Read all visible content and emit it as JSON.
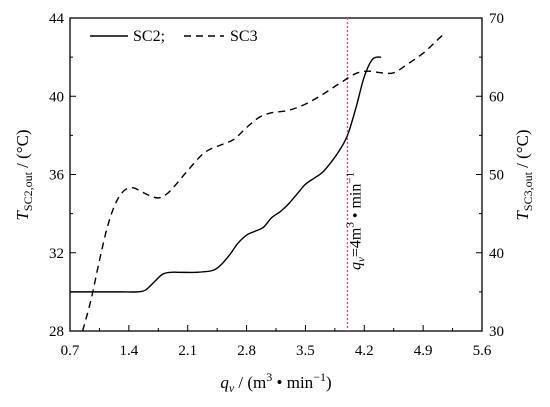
{
  "chart_data": {
    "type": "line",
    "x_axis": {
      "label_symbol": "q",
      "label_sub": "v",
      "label_unit_prefix": " / (m",
      "label_unit_sup": "3",
      "label_unit_mid": " • min",
      "label_unit_sup2": "−1",
      "label_unit_suffix": ")",
      "min": 0.7,
      "max": 5.6,
      "ticks": [
        0.7,
        1.4,
        2.1,
        2.8,
        3.5,
        4.2,
        4.9,
        5.6
      ],
      "tick_labels": [
        "0.7",
        "1.4",
        "2.1",
        "2.8",
        "3.5",
        "4.2",
        "4.9",
        "5.6"
      ]
    },
    "y_left": {
      "label_symbol": "T",
      "label_sub": "SC2,out",
      "label_unit": " / (°C)",
      "min": 28,
      "max": 44,
      "ticks": [
        28,
        32,
        36,
        40,
        44
      ],
      "tick_labels": [
        "28",
        "32",
        "36",
        "40",
        "44"
      ]
    },
    "y_right": {
      "label_symbol": "T",
      "label_sub": "SC3,out",
      "label_unit": " / (°C)",
      "min": 30,
      "max": 70,
      "ticks": [
        30,
        40,
        50,
        60,
        70
      ],
      "tick_labels": [
        "30",
        "40",
        "50",
        "60",
        "70"
      ]
    },
    "legend": {
      "placement": "top-left",
      "entries": [
        "SC2;",
        "SC3"
      ]
    },
    "series": [
      {
        "name": "SC2;",
        "axis": "left",
        "style": "solid",
        "points": [
          [
            0.7,
            30.0
          ],
          [
            1.0,
            30.0
          ],
          [
            1.3,
            30.0
          ],
          [
            1.5,
            30.0
          ],
          [
            1.6,
            30.1
          ],
          [
            1.7,
            30.5
          ],
          [
            1.8,
            30.9
          ],
          [
            1.9,
            31.0
          ],
          [
            2.0,
            31.0
          ],
          [
            2.2,
            31.0
          ],
          [
            2.4,
            31.1
          ],
          [
            2.5,
            31.4
          ],
          [
            2.6,
            31.9
          ],
          [
            2.7,
            32.5
          ],
          [
            2.8,
            32.9
          ],
          [
            2.9,
            33.1
          ],
          [
            3.0,
            33.3
          ],
          [
            3.1,
            33.8
          ],
          [
            3.2,
            34.1
          ],
          [
            3.3,
            34.5
          ],
          [
            3.4,
            35.0
          ],
          [
            3.5,
            35.5
          ],
          [
            3.6,
            35.8
          ],
          [
            3.7,
            36.1
          ],
          [
            3.8,
            36.6
          ],
          [
            3.9,
            37.2
          ],
          [
            4.0,
            38.0
          ],
          [
            4.1,
            39.4
          ],
          [
            4.2,
            41.0
          ],
          [
            4.3,
            41.9
          ],
          [
            4.4,
            42.0
          ]
        ]
      },
      {
        "name": "SC3",
        "axis": "right",
        "style": "dashed",
        "points": [
          [
            0.85,
            30.0
          ],
          [
            0.95,
            34.0
          ],
          [
            1.05,
            39.0
          ],
          [
            1.15,
            43.5
          ],
          [
            1.25,
            46.5
          ],
          [
            1.35,
            48.0
          ],
          [
            1.45,
            48.3
          ],
          [
            1.55,
            47.8
          ],
          [
            1.65,
            47.3
          ],
          [
            1.75,
            47.0
          ],
          [
            1.85,
            47.5
          ],
          [
            1.95,
            48.6
          ],
          [
            2.1,
            50.5
          ],
          [
            2.3,
            52.8
          ],
          [
            2.5,
            53.8
          ],
          [
            2.65,
            54.5
          ],
          [
            2.8,
            56.0
          ],
          [
            2.95,
            57.3
          ],
          [
            3.1,
            57.9
          ],
          [
            3.3,
            58.2
          ],
          [
            3.5,
            59.0
          ],
          [
            3.7,
            60.2
          ],
          [
            3.9,
            61.6
          ],
          [
            4.1,
            62.9
          ],
          [
            4.25,
            63.2
          ],
          [
            4.4,
            63.0
          ],
          [
            4.55,
            63.0
          ],
          [
            4.7,
            64.0
          ],
          [
            4.9,
            65.5
          ],
          [
            5.05,
            67.0
          ],
          [
            5.15,
            68.0
          ]
        ]
      }
    ],
    "annotation": {
      "x": 4.0,
      "line_color": "#e8409b",
      "label_symbol": "q",
      "label_sub": "v",
      "label_value": "=4m",
      "label_sup": "3",
      "label_rest": " • min",
      "label_sup2": "−1"
    }
  }
}
